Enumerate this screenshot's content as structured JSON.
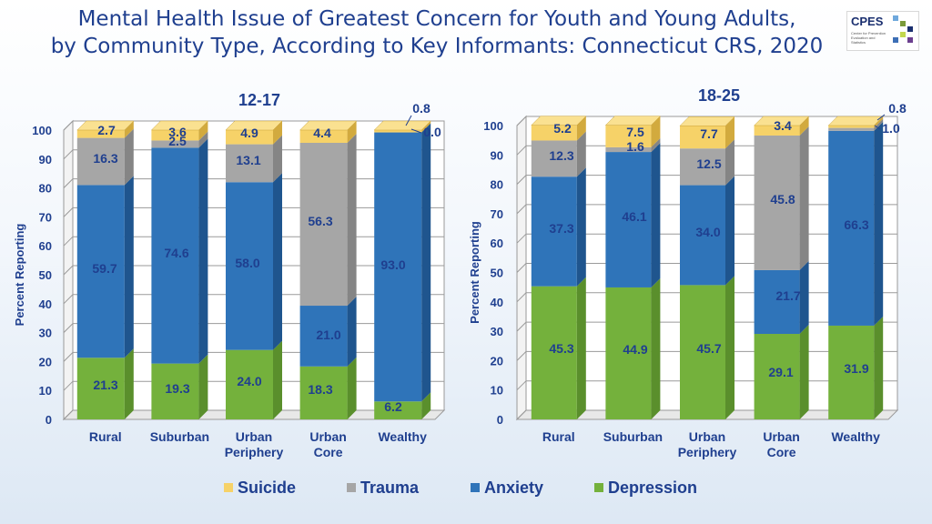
{
  "title_line1": "Mental Health Issue of Greatest Concern for Youth and Young Adults,",
  "title_line2": "by Community Type, According to Key Informants: Connecticut CRS, 2020",
  "logo": {
    "name": "CPES",
    "subtitle": "Center for Prevention Evaluation and Statistics"
  },
  "colors": {
    "suicide": "#f6d268",
    "trauma": "#a6a6a6",
    "anxiety": "#2f74b9",
    "depression": "#74b13c",
    "text": "#1f3f8f"
  },
  "legend": [
    {
      "name": "Suicide",
      "color": "#f6d268"
    },
    {
      "name": "Trauma",
      "color": "#a6a6a6"
    },
    {
      "name": "Anxiety",
      "color": "#2f74b9"
    },
    {
      "name": "Depression",
      "color": "#74b13c"
    }
  ],
  "chart_data": [
    {
      "type": "bar",
      "stacked": true,
      "title": "12-17",
      "ylabel": "Percent Reporting",
      "ylim": [
        0,
        100
      ],
      "yticks": [
        "0",
        "10",
        "20",
        "30",
        "40",
        "50",
        "60",
        "70",
        "80",
        "90",
        "100"
      ],
      "categories": [
        [
          "Rural"
        ],
        [
          "Suburban"
        ],
        [
          "Urban",
          "Periphery"
        ],
        [
          "Urban",
          "Core"
        ],
        [
          "Wealthy"
        ]
      ],
      "series": [
        {
          "name": "Depression",
          "values": [
            21.3,
            19.3,
            24.0,
            18.3,
            6.2
          ],
          "labels": [
            "21.3",
            "19.3",
            "24.0",
            "18.3",
            "6.2"
          ]
        },
        {
          "name": "Anxiety",
          "values": [
            59.7,
            74.6,
            58.0,
            21.0,
            93.0
          ],
          "labels": [
            "59.7",
            "74.6",
            "58.0",
            "21.0",
            "93.0"
          ]
        },
        {
          "name": "Trauma",
          "values": [
            16.3,
            2.5,
            13.1,
            56.3,
            0.0
          ],
          "labels": [
            "16.3",
            "2.5",
            "13.1",
            "56.3",
            "0.0"
          ]
        },
        {
          "name": "Suicide",
          "values": [
            2.7,
            3.6,
            4.9,
            4.4,
            0.8
          ],
          "labels": [
            "2.7",
            "3.6",
            "4.9",
            "4.4",
            "0.8"
          ]
        }
      ]
    },
    {
      "type": "bar",
      "stacked": true,
      "title": "18-25",
      "ylabel": "Percent Reporting",
      "ylim": [
        0,
        100
      ],
      "yticks": [
        "0",
        "10",
        "20",
        "30",
        "40",
        "50",
        "60",
        "70",
        "80",
        "90",
        "100"
      ],
      "categories": [
        [
          "Rural"
        ],
        [
          "Suburban"
        ],
        [
          "Urban",
          "Periphery"
        ],
        [
          "Urban",
          "Core"
        ],
        [
          "Wealthy"
        ]
      ],
      "series": [
        {
          "name": "Depression",
          "values": [
            45.3,
            44.9,
            45.7,
            29.1,
            31.9
          ],
          "labels": [
            "45.3",
            "44.9",
            "45.7",
            "29.1",
            "31.9"
          ]
        },
        {
          "name": "Anxiety",
          "values": [
            37.3,
            46.1,
            34.0,
            21.7,
            66.3
          ],
          "labels": [
            "37.3",
            "46.1",
            "34.0",
            "21.7",
            "66.3"
          ]
        },
        {
          "name": "Trauma",
          "values": [
            12.3,
            1.6,
            12.5,
            45.8,
            1.0
          ],
          "labels": [
            "12.3",
            "1.6",
            "12.5",
            "45.8",
            "1.0"
          ]
        },
        {
          "name": "Suicide",
          "values": [
            5.2,
            7.5,
            7.7,
            3.4,
            0.8
          ],
          "labels": [
            "5.2",
            "7.5",
            "7.7",
            "3.4",
            "0.8"
          ]
        }
      ]
    }
  ]
}
